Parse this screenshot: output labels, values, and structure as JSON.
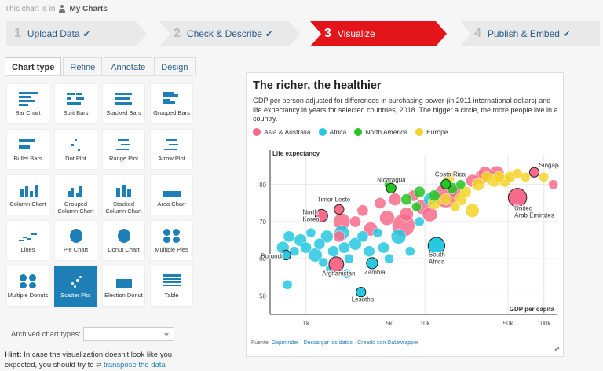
{
  "folder": {
    "prefix": "This chart is in",
    "name": "My Charts"
  },
  "steps": [
    {
      "num": "1",
      "label": "Upload Data",
      "check": "✔"
    },
    {
      "num": "2",
      "label": "Check & Describe",
      "check": "✔"
    },
    {
      "num": "3",
      "label": "Visualize",
      "check": ""
    },
    {
      "num": "4",
      "label": "Publish & Embed",
      "check": "✔"
    }
  ],
  "tabs": [
    "Chart type",
    "Refine",
    "Annotate",
    "Design"
  ],
  "chart_types": [
    "Bar Chart",
    "Split Bars",
    "Stacked Bars",
    "Grouped Bars",
    "Bullet Bars",
    "Dot Plot",
    "Range Plot",
    "Arrow Plot",
    "Column Chart",
    "Grouped Column Chart",
    "Stacked Column Chart",
    "Area Chart",
    "Lines",
    "Pie Chart",
    "Donut Chart",
    "Multiple Pies",
    "Multiple Donuts",
    "Scatter Plot",
    "Election Donut",
    "Table"
  ],
  "selected_chart_type": "Scatter Plot",
  "archived": {
    "label": "Archived chart types:",
    "value": ""
  },
  "hint": {
    "bold": "Hint:",
    "text": "In case the visualization doesn't look like you expected, you should try to",
    "link": "transpose the data"
  },
  "chart": {
    "title": "The richer, the healthier",
    "description": "GDP per person adjusted for differences in purchasing power (in 2011 international dollars) and life expectancy in years for selected countries, 2018. The bigger a circle, the more people live in a country.",
    "source_prefix": "Fuente:",
    "source_links": [
      "Gapminder",
      "Descargar los datos",
      "Creado con Datawrapper"
    ]
  },
  "chart_data": {
    "type": "scatter",
    "xlabel": "GDP per capita",
    "ylabel": "Life expectancy",
    "xscale": "log",
    "xlim": [
      500,
      130000
    ],
    "ylim": [
      45,
      88
    ],
    "x_ticks": [
      {
        "value": 1000,
        "label": "1k"
      },
      {
        "value": 5000,
        "label": "5k"
      },
      {
        "value": 10000,
        "label": "10k"
      },
      {
        "value": 50000,
        "label": "50k"
      },
      {
        "value": 100000,
        "label": "100k"
      }
    ],
    "y_ticks": [
      50,
      60,
      70,
      80
    ],
    "legend": [
      {
        "name": "Asia & Australia",
        "color": "#f76b8a"
      },
      {
        "name": "Africa",
        "color": "#27c8e0"
      },
      {
        "name": "North America",
        "color": "#25c425"
      },
      {
        "name": "Europe",
        "color": "#f5d32a"
      }
    ],
    "labeled_points": [
      {
        "name": "Singapore",
        "x": 83000,
        "y": 83.3,
        "size": 2,
        "region": "Asia & Australia"
      },
      {
        "name": "Costa Rica",
        "x": 15000,
        "y": 80.1,
        "size": 2,
        "region": "North America"
      },
      {
        "name": "Nicaragua",
        "x": 5200,
        "y": 79.0,
        "size": 2,
        "region": "North America"
      },
      {
        "name": "Timor-Leste",
        "x": 1900,
        "y": 73.3,
        "size": 2,
        "region": "Asia & Australia"
      },
      {
        "name": "North Korea",
        "x": 1350,
        "y": 71.6,
        "size": 4,
        "region": "Asia & Australia"
      },
      {
        "name": "United Arab Emirates",
        "x": 60000,
        "y": 76.5,
        "size": 10,
        "region": "Asia & Australia"
      },
      {
        "name": "Burundi",
        "x": 680,
        "y": 61.0,
        "size": 2,
        "region": "Africa"
      },
      {
        "name": "Afghanistan",
        "x": 1800,
        "y": 58.5,
        "size": 6,
        "region": "Asia & Australia"
      },
      {
        "name": "Zambia",
        "x": 3600,
        "y": 58.8,
        "size": 3,
        "region": "Africa"
      },
      {
        "name": "South Africa",
        "x": 12500,
        "y": 63.5,
        "size": 8,
        "region": "Africa"
      },
      {
        "name": "Lesotho",
        "x": 2900,
        "y": 51.0,
        "size": 2,
        "region": "Africa"
      }
    ],
    "points": [
      {
        "x": 640,
        "y": 63,
        "size": 4,
        "region": "Africa"
      },
      {
        "x": 720,
        "y": 66,
        "size": 3,
        "region": "Africa"
      },
      {
        "x": 800,
        "y": 62,
        "size": 2,
        "region": "Africa"
      },
      {
        "x": 900,
        "y": 65,
        "size": 4,
        "region": "Africa"
      },
      {
        "x": 1000,
        "y": 63,
        "size": 3,
        "region": "Africa"
      },
      {
        "x": 1100,
        "y": 67,
        "size": 2,
        "region": "Africa"
      },
      {
        "x": 1200,
        "y": 61,
        "size": 5,
        "region": "Africa"
      },
      {
        "x": 1300,
        "y": 64,
        "size": 3,
        "region": "Africa"
      },
      {
        "x": 1500,
        "y": 66,
        "size": 4,
        "region": "Africa"
      },
      {
        "x": 1700,
        "y": 62,
        "size": 3,
        "region": "Africa"
      },
      {
        "x": 2000,
        "y": 67,
        "size": 6,
        "region": "Africa"
      },
      {
        "x": 2100,
        "y": 63,
        "size": 3,
        "region": "Africa"
      },
      {
        "x": 2300,
        "y": 60,
        "size": 2,
        "region": "Africa"
      },
      {
        "x": 2600,
        "y": 64,
        "size": 4,
        "region": "Africa"
      },
      {
        "x": 3000,
        "y": 66,
        "size": 3,
        "region": "Africa"
      },
      {
        "x": 3400,
        "y": 62,
        "size": 3,
        "region": "Africa"
      },
      {
        "x": 4000,
        "y": 67,
        "size": 2,
        "region": "Africa"
      },
      {
        "x": 4500,
        "y": 63,
        "size": 3,
        "region": "Africa"
      },
      {
        "x": 6000,
        "y": 66,
        "size": 6,
        "region": "Africa"
      },
      {
        "x": 7500,
        "y": 62,
        "size": 2,
        "region": "Africa"
      },
      {
        "x": 9000,
        "y": 70,
        "size": 2,
        "region": "Africa"
      },
      {
        "x": 11000,
        "y": 76,
        "size": 4,
        "region": "Africa"
      },
      {
        "x": 1600,
        "y": 57,
        "size": 2,
        "region": "Africa"
      },
      {
        "x": 2200,
        "y": 56,
        "size": 2,
        "region": "Africa"
      },
      {
        "x": 1400,
        "y": 59,
        "size": 2,
        "region": "Africa"
      },
      {
        "x": 5000,
        "y": 60,
        "size": 2,
        "region": "Africa"
      },
      {
        "x": 700,
        "y": 53,
        "size": 2,
        "region": "Africa"
      },
      {
        "x": 2000,
        "y": 70,
        "size": 8,
        "region": "Asia & Australia"
      },
      {
        "x": 3500,
        "y": 68,
        "size": 5,
        "region": "Asia & Australia"
      },
      {
        "x": 4800,
        "y": 71,
        "size": 6,
        "region": "Asia & Australia"
      },
      {
        "x": 6600,
        "y": 69,
        "size": 16,
        "region": "Asia & Australia"
      },
      {
        "x": 7000,
        "y": 72,
        "size": 5,
        "region": "Asia & Australia"
      },
      {
        "x": 9500,
        "y": 74,
        "size": 6,
        "region": "Asia & Australia"
      },
      {
        "x": 11000,
        "y": 72,
        "size": 6,
        "region": "Asia & Australia"
      },
      {
        "x": 15000,
        "y": 77,
        "size": 18,
        "region": "Asia & Australia"
      },
      {
        "x": 3000,
        "y": 73,
        "size": 3,
        "region": "Asia & Australia"
      },
      {
        "x": 4200,
        "y": 75,
        "size": 3,
        "region": "Asia & Australia"
      },
      {
        "x": 5600,
        "y": 76,
        "size": 4,
        "region": "Asia & Australia"
      },
      {
        "x": 8000,
        "y": 77,
        "size": 3,
        "region": "Asia & Australia"
      },
      {
        "x": 18000,
        "y": 78,
        "size": 4,
        "region": "Asia & Australia"
      },
      {
        "x": 25000,
        "y": 81,
        "size": 4,
        "region": "Asia & Australia"
      },
      {
        "x": 30000,
        "y": 82,
        "size": 5,
        "region": "Asia & Australia"
      },
      {
        "x": 40000,
        "y": 83,
        "size": 6,
        "region": "Asia & Australia"
      },
      {
        "x": 1900,
        "y": 66,
        "size": 3,
        "region": "Asia & Australia"
      },
      {
        "x": 2600,
        "y": 70,
        "size": 3,
        "region": "Asia & Australia"
      },
      {
        "x": 5000,
        "y": 80,
        "size": 2,
        "region": "North America"
      },
      {
        "x": 7000,
        "y": 76,
        "size": 3,
        "region": "North America"
      },
      {
        "x": 9000,
        "y": 78,
        "size": 3,
        "region": "North America"
      },
      {
        "x": 12000,
        "y": 77,
        "size": 3,
        "region": "North America"
      },
      {
        "x": 17000,
        "y": 79,
        "size": 3,
        "region": "North America"
      },
      {
        "x": 20000,
        "y": 80,
        "size": 2,
        "region": "North America"
      },
      {
        "x": 8500,
        "y": 74,
        "size": 2,
        "region": "North America"
      },
      {
        "x": 12000,
        "y": 75,
        "size": 4,
        "region": "Europe"
      },
      {
        "x": 15000,
        "y": 76,
        "size": 3,
        "region": "Europe"
      },
      {
        "x": 20000,
        "y": 76,
        "size": 4,
        "region": "Europe"
      },
      {
        "x": 22000,
        "y": 78,
        "size": 3,
        "region": "Europe"
      },
      {
        "x": 28000,
        "y": 80,
        "size": 4,
        "region": "Europe"
      },
      {
        "x": 33000,
        "y": 82,
        "size": 3,
        "region": "Europe"
      },
      {
        "x": 38000,
        "y": 81,
        "size": 4,
        "region": "Europe"
      },
      {
        "x": 42000,
        "y": 82,
        "size": 3,
        "region": "Europe"
      },
      {
        "x": 47000,
        "y": 81,
        "size": 4,
        "region": "Europe"
      },
      {
        "x": 52000,
        "y": 82,
        "size": 3,
        "region": "Europe"
      },
      {
        "x": 60000,
        "y": 83,
        "size": 2,
        "region": "Europe"
      },
      {
        "x": 70000,
        "y": 82,
        "size": 2,
        "region": "Europe"
      },
      {
        "x": 25000,
        "y": 73,
        "size": 5,
        "region": "Europe"
      },
      {
        "x": 18000,
        "y": 74,
        "size": 2,
        "region": "Europe"
      },
      {
        "x": 100000,
        "y": 82,
        "size": 2,
        "region": "Europe"
      },
      {
        "x": 16000,
        "y": 82,
        "size": 3,
        "region": "Europe"
      },
      {
        "x": 32000,
        "y": 83,
        "size": 5,
        "region": "Asia & Australia"
      },
      {
        "x": 120000,
        "y": 80,
        "size": 2,
        "region": "Asia & Australia"
      }
    ]
  }
}
